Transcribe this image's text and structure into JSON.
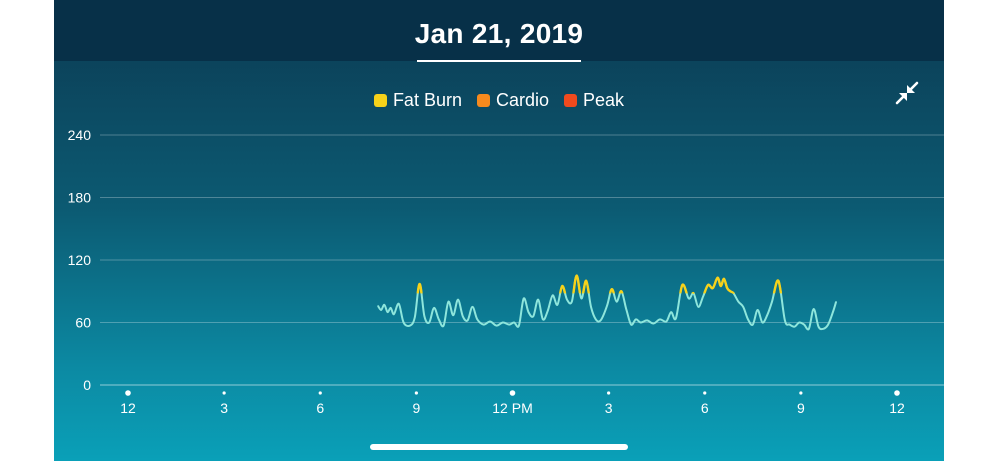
{
  "header": {
    "date": "Jan 21, 2019"
  },
  "legend": [
    {
      "label": "Fat Burn",
      "color": "#f7d21a"
    },
    {
      "label": "Cardio",
      "color": "#f68a1e"
    },
    {
      "label": "Peak",
      "color": "#f04a1e"
    }
  ],
  "icons": {
    "collapse": "collapse-arrows-icon"
  },
  "chart_data": {
    "type": "line",
    "title": "",
    "xlabel": "",
    "ylabel": "",
    "ylim": [
      0,
      240
    ],
    "xlim": [
      0,
      24
    ],
    "yticks": [
      0,
      60,
      120,
      180,
      240
    ],
    "xticks": [
      {
        "hour": 0,
        "label": "12"
      },
      {
        "hour": 3,
        "label": "3"
      },
      {
        "hour": 6,
        "label": "6"
      },
      {
        "hour": 9,
        "label": "9"
      },
      {
        "hour": 12,
        "label": "12 PM"
      },
      {
        "hour": 15,
        "label": "3"
      },
      {
        "hour": 18,
        "label": "6"
      },
      {
        "hour": 21,
        "label": "9"
      },
      {
        "hour": 24,
        "label": "12"
      }
    ],
    "grid": true,
    "legend_position": "top-center",
    "zone_threshold": 88,
    "line_color": "#8ee6dc",
    "zone_color": "#f7d21a",
    "series": [
      {
        "name": "",
        "x": [
          7.8,
          7.9,
          8.0,
          8.1,
          8.2,
          8.3,
          8.45,
          8.6,
          8.8,
          8.95,
          9.1,
          9.25,
          9.4,
          9.55,
          9.7,
          9.85,
          10.0,
          10.15,
          10.3,
          10.45,
          10.6,
          10.75,
          10.9,
          11.1,
          11.3,
          11.5,
          11.7,
          11.9,
          12.05,
          12.2,
          12.35,
          12.5,
          12.65,
          12.8,
          12.95,
          13.1,
          13.25,
          13.4,
          13.55,
          13.7,
          13.85,
          14.0,
          14.15,
          14.3,
          14.45,
          14.6,
          14.75,
          14.95,
          15.1,
          15.25,
          15.4,
          15.55,
          15.7,
          15.85,
          16.0,
          16.2,
          16.4,
          16.6,
          16.8,
          16.95,
          17.1,
          17.3,
          17.5,
          17.65,
          17.8,
          17.95,
          18.1,
          18.25,
          18.4,
          18.5,
          18.6,
          18.7,
          18.8,
          18.9,
          19.05,
          19.2,
          19.35,
          19.5,
          19.65,
          19.8,
          19.95,
          20.1,
          20.3,
          20.5,
          20.65,
          20.8,
          20.95,
          21.1,
          21.25,
          21.4,
          21.55,
          21.7,
          21.85,
          22.0,
          22.1
        ],
        "y": [
          76,
          72,
          77,
          70,
          74,
          68,
          78,
          60,
          57,
          65,
          97,
          66,
          60,
          74,
          63,
          57,
          80,
          67,
          82,
          66,
          62,
          75,
          63,
          58,
          61,
          57,
          60,
          58,
          60,
          57,
          83,
          70,
          66,
          82,
          63,
          71,
          86,
          77,
          95,
          82,
          80,
          105,
          83,
          100,
          75,
          63,
          62,
          76,
          92,
          80,
          90,
          73,
          58,
          63,
          60,
          62,
          59,
          63,
          61,
          70,
          64,
          96,
          83,
          88,
          75,
          85,
          96,
          93,
          103,
          95,
          102,
          93,
          90,
          88,
          80,
          75,
          63,
          58,
          72,
          60,
          67,
          80,
          100,
          62,
          58,
          56,
          60,
          58,
          54,
          73,
          56,
          54,
          58,
          70,
          80
        ]
      }
    ]
  }
}
